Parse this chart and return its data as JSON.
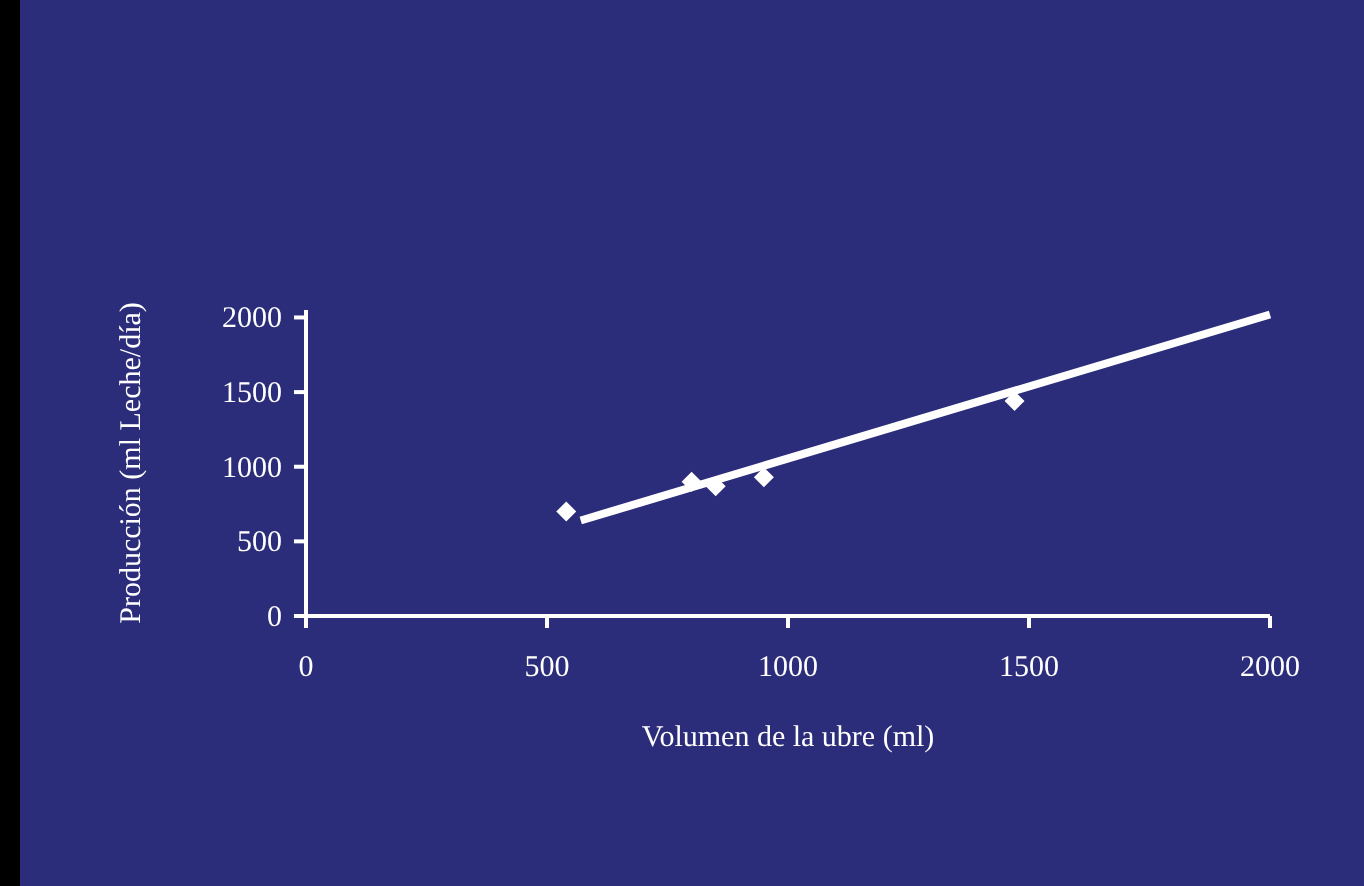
{
  "chart_data": {
    "type": "scatter",
    "xlabel": "Volumen de la ubre (ml)",
    "ylabel": "Producción (ml Leche/día)",
    "series": [
      {
        "color": "#ffffff",
        "x": [
          540,
          800,
          850,
          950,
          1470
        ],
        "values": [
          700,
          900,
          870,
          930,
          1440
        ],
        "marker": "diamond"
      },
      {
        "type": "line",
        "color": "#ffffff",
        "x": [
          570,
          2000
        ],
        "values": [
          640,
          2020
        ],
        "marker": "none"
      }
    ],
    "xlim": [
      0,
      2000
    ],
    "xticks": [
      0,
      500,
      1000,
      1500,
      2000
    ],
    "ylim": [
      0,
      2050
    ],
    "yticks": [
      0,
      500,
      1000,
      1500,
      2000
    ],
    "grid": false
  }
}
